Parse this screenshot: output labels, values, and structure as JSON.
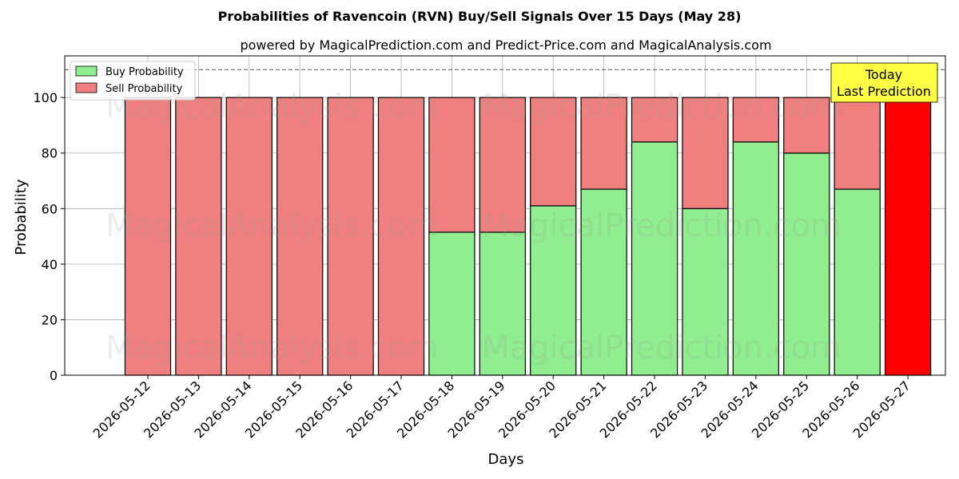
{
  "chart_data": {
    "type": "bar",
    "stacked": true,
    "title": "Probabilities of Ravencoin (RVN) Buy/Sell Signals Over 15 Days (May 28)",
    "subtitle": "powered by MagicalPrediction.com and Predict-Price.com and MagicalAnalysis.com",
    "xlabel": "Days",
    "ylabel": "Probability",
    "ylim": [
      0,
      115
    ],
    "yticks": [
      0,
      20,
      40,
      60,
      80,
      100
    ],
    "grid": true,
    "legend_position": "top-left",
    "reference_line": 110,
    "categories": [
      "2026-05-12",
      "2026-05-13",
      "2026-05-14",
      "2026-05-15",
      "2026-05-16",
      "2026-05-17",
      "2026-05-18",
      "2026-05-19",
      "2026-05-20",
      "2026-05-21",
      "2026-05-22",
      "2026-05-23",
      "2026-05-24",
      "2026-05-25",
      "2026-05-26",
      "2026-05-27"
    ],
    "series": [
      {
        "name": "Buy Probability",
        "color": "#90ee90",
        "values": [
          0,
          0,
          0,
          0,
          0,
          0,
          51.5,
          51.5,
          61,
          67,
          84,
          60,
          84,
          80,
          67,
          0
        ]
      },
      {
        "name": "Sell Probability",
        "color": "#f08080",
        "values": [
          100,
          100,
          100,
          100,
          100,
          100,
          48.5,
          48.5,
          39,
          33,
          16,
          40,
          16,
          20,
          33,
          100
        ]
      }
    ],
    "highlight": {
      "category": "2026-05-27",
      "color": "#ff0000"
    },
    "annotation": {
      "lines": [
        "Today",
        "Last Prediction"
      ],
      "background": "#ffff44"
    },
    "watermarks": [
      "MagicalAnalysis.com",
      "MagicalPrediction.com"
    ]
  }
}
